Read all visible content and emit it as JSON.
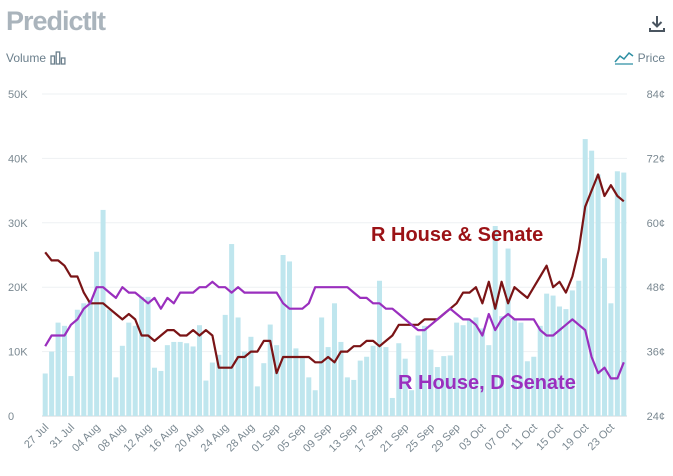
{
  "header": {
    "logo": "PredictIt"
  },
  "legend": {
    "volume_label": "Volume",
    "price_label": "Price"
  },
  "icons": {
    "download": "download-icon",
    "volume": "bar-chart-icon",
    "price": "line-chart-icon"
  },
  "colors": {
    "volume": "#bfe6ee",
    "rhouse_rsenate": "#7a1416",
    "rhouse_dsenate": "#9a2fbe",
    "anno_r": "#9b1216",
    "anno_d": "#9a2fbe"
  },
  "chart_data": {
    "type": "bar",
    "x": [
      "27 Jul",
      "28 Jul",
      "29 Jul",
      "30 Jul",
      "31 Jul",
      "01 Aug",
      "02 Aug",
      "03 Aug",
      "04 Aug",
      "05 Aug",
      "06 Aug",
      "07 Aug",
      "08 Aug",
      "09 Aug",
      "10 Aug",
      "11 Aug",
      "12 Aug",
      "13 Aug",
      "14 Aug",
      "15 Aug",
      "16 Aug",
      "17 Aug",
      "18 Aug",
      "19 Aug",
      "20 Aug",
      "21 Aug",
      "22 Aug",
      "23 Aug",
      "24 Aug",
      "25 Aug",
      "26 Aug",
      "27 Aug",
      "28 Aug",
      "29 Aug",
      "30 Aug",
      "31 Aug",
      "01 Sep",
      "02 Sep",
      "03 Sep",
      "04 Sep",
      "05 Sep",
      "06 Sep",
      "07 Sep",
      "08 Sep",
      "09 Sep",
      "10 Sep",
      "11 Sep",
      "12 Sep",
      "13 Sep",
      "14 Sep",
      "15 Sep",
      "16 Sep",
      "17 Sep",
      "18 Sep",
      "19 Sep",
      "20 Sep",
      "21 Sep",
      "22 Sep",
      "23 Sep",
      "24 Sep",
      "25 Sep",
      "26 Sep",
      "27 Sep",
      "28 Sep",
      "29 Sep",
      "30 Sep",
      "01 Oct",
      "02 Oct",
      "03 Oct",
      "04 Oct",
      "05 Oct",
      "06 Oct",
      "07 Oct",
      "08 Oct",
      "09 Oct",
      "10 Oct",
      "11 Oct",
      "12 Oct",
      "13 Oct",
      "14 Oct",
      "15 Oct",
      "16 Oct",
      "17 Oct",
      "18 Oct",
      "19 Oct",
      "20 Oct",
      "21 Oct",
      "22 Oct",
      "23 Oct",
      "24 Oct",
      "25 Oct"
    ],
    "x_tick_labels": [
      "27 Jul",
      "31 Jul",
      "04 Aug",
      "08 Aug",
      "12 Aug",
      "16 Aug",
      "20 Aug",
      "24 Aug",
      "28 Aug",
      "01 Sep",
      "05 Sep",
      "09 Sep",
      "13 Sep",
      "17 Sep",
      "21 Sep",
      "25 Sep",
      "29 Sep",
      "03 Oct",
      "07 Oct",
      "11 Oct",
      "15 Oct",
      "19 Oct",
      "23 Oct"
    ],
    "y_left": {
      "label": "Volume",
      "ticks": [
        "0",
        "10K",
        "20K",
        "30K",
        "40K",
        "50K"
      ],
      "range": [
        0,
        50000
      ]
    },
    "y_right": {
      "label": "Price",
      "ticks": [
        "24¢",
        "36¢",
        "48¢",
        "60¢",
        "72¢",
        "84¢"
      ],
      "range": [
        24,
        84
      ]
    },
    "series": [
      {
        "kind": "volume",
        "values": [
          6600,
          10000,
          14500,
          14000,
          6200,
          16500,
          17500,
          18000,
          25500,
          32000,
          16500,
          6000,
          10900,
          14500,
          14000,
          18500,
          18500,
          7500,
          7000,
          11000,
          11500,
          11500,
          11300,
          10800,
          14100,
          5500,
          8300,
          9500,
          15700,
          26700,
          15300,
          10000,
          12300,
          4600,
          8200,
          14200,
          11000,
          25000,
          24000,
          10500,
          9300,
          6000,
          4000,
          15300,
          10700,
          17500,
          11500,
          6000,
          5600,
          8600,
          9200,
          10900,
          21000,
          10700,
          2800,
          11300,
          8900,
          4000,
          12500,
          14000,
          10300,
          7600,
          9300,
          9400,
          14500,
          14100,
          14900,
          15300,
          13600,
          11000,
          29500,
          15500,
          26000,
          15000,
          14500,
          8500,
          9200,
          14000,
          19000,
          18700,
          17000,
          16600,
          19500,
          21000,
          43000,
          41200,
          37500,
          24500,
          17500,
          38000,
          37800
        ]
      },
      {
        "name": "R House & Senate",
        "values": [
          54.5,
          53,
          53,
          52,
          50,
          50,
          47,
          45,
          45,
          45,
          44,
          43,
          42,
          43,
          42,
          39,
          39,
          38,
          39,
          40,
          40,
          39,
          39,
          40,
          39,
          40,
          39,
          33,
          33,
          33,
          35,
          35,
          36,
          36,
          38,
          38,
          32,
          35,
          35,
          35,
          35,
          35,
          34,
          34,
          35,
          34,
          36,
          36,
          37,
          37,
          38,
          38,
          37,
          38,
          39,
          41,
          41,
          41,
          41,
          42,
          42,
          42,
          43,
          44,
          45,
          47,
          47,
          48,
          45,
          49,
          44,
          49,
          45,
          48,
          47,
          46,
          48,
          50,
          52,
          48,
          49,
          47,
          50,
          55,
          63,
          66,
          69,
          65,
          67,
          65,
          64
        ]
      },
      {
        "name": "R House, D Senate",
        "values": [
          37,
          39,
          39,
          39,
          41,
          42,
          44,
          45,
          48,
          48,
          47,
          46,
          48,
          47,
          47,
          46,
          45,
          46,
          44,
          46,
          45,
          47,
          47,
          47,
          48,
          48,
          49,
          48,
          48,
          47,
          48,
          47,
          47,
          47,
          47,
          47,
          47,
          45,
          44,
          44,
          44,
          45,
          48,
          48,
          48,
          48,
          48,
          48,
          47,
          46,
          46,
          45,
          45,
          44,
          44,
          43,
          42,
          41,
          40,
          40,
          41,
          42,
          43,
          44,
          43,
          42,
          42,
          41,
          39,
          43,
          40,
          42,
          43,
          42,
          42,
          42,
          42,
          40,
          39,
          39,
          40,
          41,
          42,
          41,
          40,
          35,
          32,
          33,
          31,
          31,
          34
        ]
      }
    ],
    "annotations": [
      "R House & Senate",
      "R House, D Senate"
    ]
  }
}
